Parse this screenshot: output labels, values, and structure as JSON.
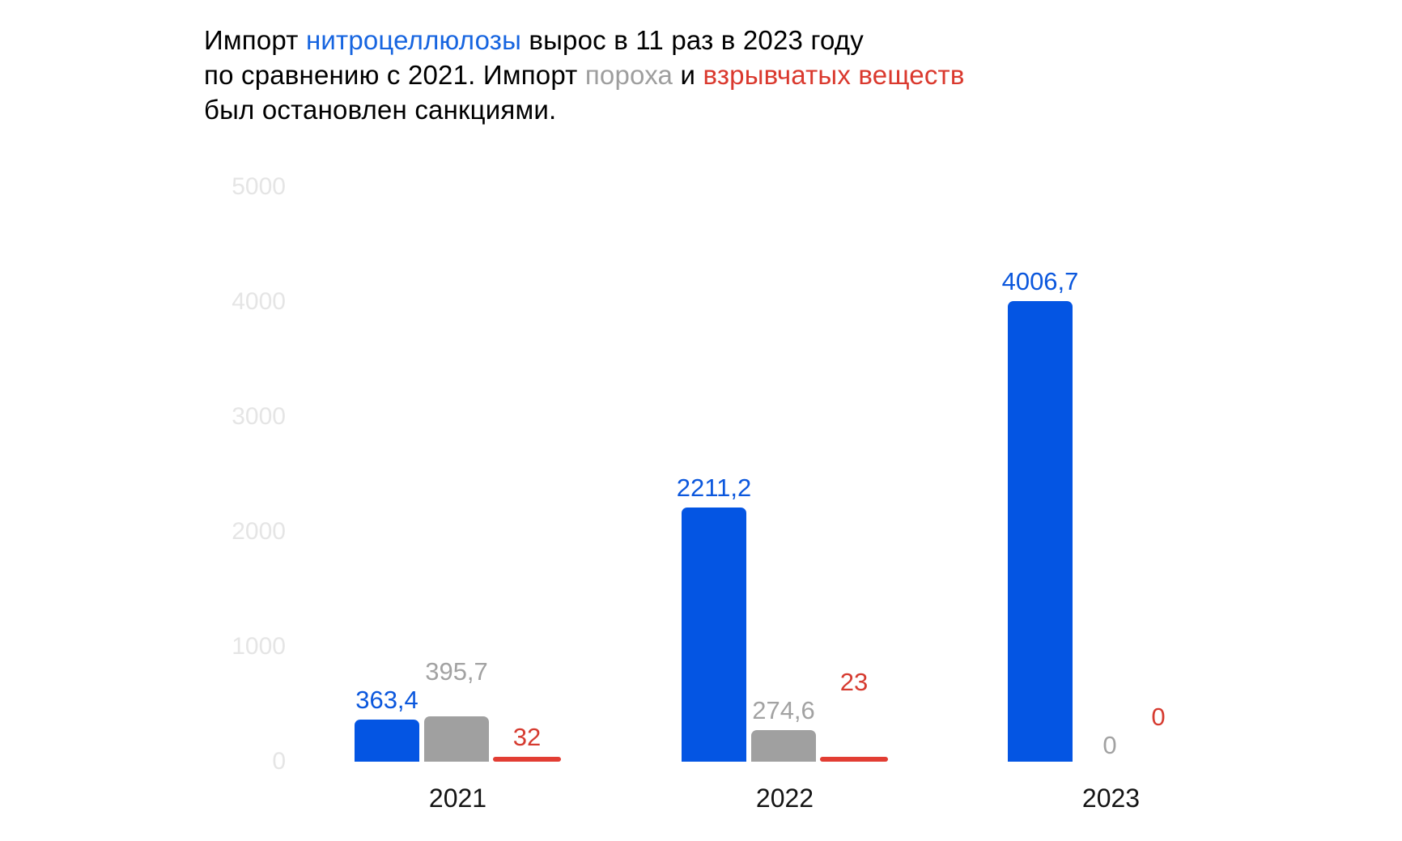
{
  "title": {
    "full_text": "Импорт нитроцеллюлозы вырос в 11 раз в 2023 году по сравнению с 2021. Импорт пороха и взрывчатых веществ был остановлен санкциями.",
    "lines": [
      {
        "segments": [
          {
            "text": "Импорт ",
            "color_key": "title_black"
          },
          {
            "text": "нитроцеллюлозы",
            "color_key": "title_blue"
          },
          {
            "text": " вырос в 11 раз в 2023 году",
            "color_key": "title_black"
          }
        ]
      },
      {
        "segments": [
          {
            "text": "по сравнению с 2021. Импорт ",
            "color_key": "title_black"
          },
          {
            "text": "пороха",
            "color_key": "title_gray"
          },
          {
            "text": " и ",
            "color_key": "title_black"
          },
          {
            "text": "взрывчатых веществ",
            "color_key": "title_red"
          }
        ]
      },
      {
        "segments": [
          {
            "text": "был остановлен санкциями.",
            "color_key": "title_black"
          }
        ]
      }
    ]
  },
  "colors": {
    "background": "#ffffff",
    "title_black": "#000000",
    "title_blue": "#1765e0",
    "title_gray": "#9e9e9e",
    "title_red": "#da392e",
    "bar_blue": "#0455e3",
    "bar_gray": "#a0a0a0",
    "bar_red": "#e23d33",
    "label_blue": "#0b57dd",
    "label_gray": "#a2a2a2",
    "label_red": "#d63b30",
    "tick_gray": "#e5e5e5",
    "x_label": "#141414"
  },
  "chart_data": {
    "type": "bar",
    "title": "Импорт нитроцеллюлозы вырос в 11 раз в 2023 году по сравнению с 2021. Импорт пороха и взрывчатых веществ был остановлен санкциями.",
    "categories": [
      "2021",
      "2022",
      "2023"
    ],
    "series": [
      {
        "key": "nitrocellulose",
        "name": "нитроцеллюлоза",
        "color_key": "blue",
        "values": [
          363.4,
          2211.2,
          4006.7
        ],
        "labels": [
          "363,4",
          "2211,2",
          "4006,7"
        ]
      },
      {
        "key": "gunpowder",
        "name": "порох",
        "color_key": "gray",
        "values": [
          395.7,
          274.6,
          0
        ],
        "labels": [
          "395,7",
          "274,6",
          "0"
        ]
      },
      {
        "key": "explosives",
        "name": "взрывчатые вещества",
        "color_key": "red",
        "values": [
          32,
          23,
          0
        ],
        "labels": [
          "32",
          "23",
          "0"
        ]
      }
    ],
    "y_ticks": [
      5000,
      4000,
      3000,
      2000,
      1000,
      0
    ],
    "y_tick_labels": [
      "5000",
      "4000",
      "3000",
      "2000",
      "1000",
      "0"
    ],
    "ylim": [
      0,
      5000
    ],
    "xlabel": "",
    "ylabel": "",
    "grid": "off",
    "legend": "none — series identified by colored words in the title"
  }
}
